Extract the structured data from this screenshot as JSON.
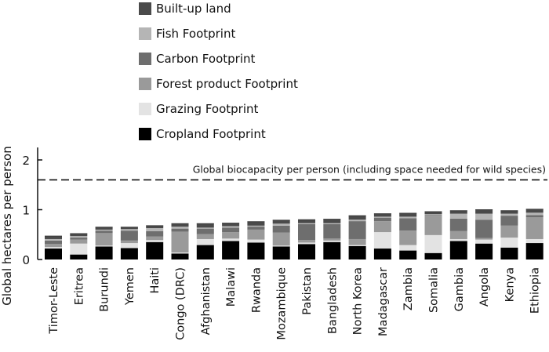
{
  "chart_data": {
    "type": "bar",
    "stacked": true,
    "title": "",
    "xlabel": "",
    "ylabel": "Global hectares per person",
    "ylim": [
      0,
      2.25
    ],
    "yticks": [
      0,
      1,
      2
    ],
    "grid": false,
    "legend_position": "top",
    "categories": [
      "Timor-Leste",
      "Eritrea",
      "Burundi",
      "Yemen",
      "Haiti",
      "Congo (DRC)",
      "Afghanistan",
      "Malawi",
      "Rwanda",
      "Mozambique",
      "Pakistan",
      "Bangladesh",
      "North Korea",
      "Madagascar",
      "Zambia",
      "Somalia",
      "Gambia",
      "Angola",
      "Kenya",
      "Ethiopia"
    ],
    "series": [
      {
        "name": "Cropland Footprint",
        "color": "#000000",
        "values": [
          0.22,
          0.1,
          0.26,
          0.23,
          0.35,
          0.12,
          0.29,
          0.37,
          0.34,
          0.26,
          0.31,
          0.35,
          0.27,
          0.22,
          0.18,
          0.13,
          0.37,
          0.32,
          0.24,
          0.33
        ]
      },
      {
        "name": "Grazing Footprint",
        "color": "#e3e3e3",
        "values": [
          0.03,
          0.22,
          0.02,
          0.1,
          0.04,
          0.02,
          0.12,
          0.05,
          0.06,
          0.02,
          0.03,
          0.03,
          0.02,
          0.33,
          0.11,
          0.36,
          0.04,
          0.08,
          0.2,
          0.08
        ]
      },
      {
        "name": "Forest product Footprint",
        "color": "#9a9a9a",
        "values": [
          0.06,
          0.08,
          0.25,
          0.05,
          0.07,
          0.42,
          0.1,
          0.13,
          0.2,
          0.26,
          0.05,
          0.04,
          0.12,
          0.22,
          0.29,
          0.39,
          0.16,
          0.03,
          0.24,
          0.44
        ]
      },
      {
        "name": "Carbon Footprint",
        "color": "#6e6e6e",
        "values": [
          0.07,
          0.04,
          0.05,
          0.2,
          0.11,
          0.06,
          0.11,
          0.09,
          0.06,
          0.14,
          0.32,
          0.29,
          0.36,
          0.07,
          0.25,
          0.01,
          0.25,
          0.37,
          0.2,
          0.04
        ]
      },
      {
        "name": "Fish Footprint",
        "color": "#b5b5b5",
        "values": [
          0.03,
          0.03,
          0.02,
          0.03,
          0.06,
          0.04,
          0.02,
          0.03,
          0.02,
          0.04,
          0.02,
          0.02,
          0.03,
          0.02,
          0.03,
          0.02,
          0.1,
          0.12,
          0.04,
          0.05
        ]
      },
      {
        "name": "Built-up land",
        "color": "#4a4a4a",
        "values": [
          0.06,
          0.05,
          0.05,
          0.04,
          0.05,
          0.06,
          0.08,
          0.06,
          0.08,
          0.07,
          0.07,
          0.08,
          0.08,
          0.06,
          0.07,
          0.05,
          0.06,
          0.08,
          0.06,
          0.07
        ]
      }
    ],
    "legend_order": [
      "Built-up land",
      "Fish Footprint",
      "Carbon Footprint",
      "Forest product Footprint",
      "Grazing Footprint",
      "Cropland Footprint"
    ],
    "reference_line": {
      "value": 1.6,
      "label": "Global biocapacity per person (including space needed for wild species)",
      "style": "dashed"
    }
  }
}
